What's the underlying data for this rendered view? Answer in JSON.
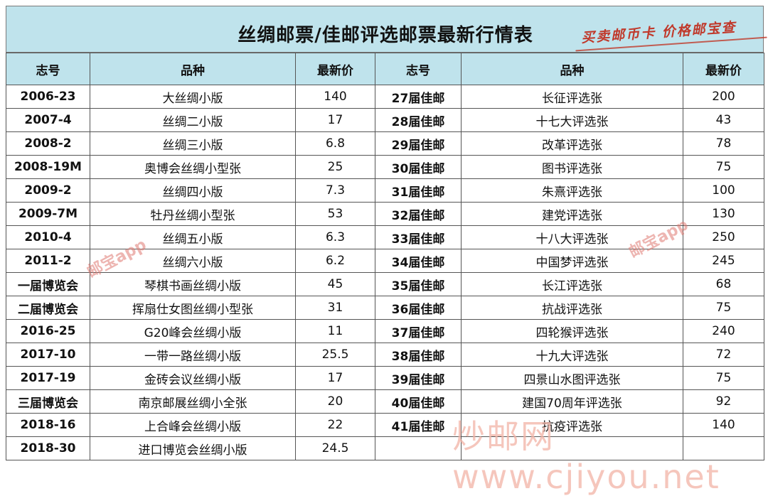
{
  "title": "丝绸邮票/佳邮评选邮票最新行情表",
  "slogan": "买卖邮币卡 价格邮宝查",
  "headers": {
    "left": [
      "志号",
      "品种",
      "最新价"
    ],
    "right": [
      "志号",
      "品种",
      "最新价"
    ]
  },
  "rows_left": [
    {
      "code": "2006-23",
      "name": "大丝绸小版",
      "price": "140"
    },
    {
      "code": "2007-4",
      "name": "丝绸二小版",
      "price": "17"
    },
    {
      "code": "2008-2",
      "name": "丝绸三小版",
      "price": "6.8"
    },
    {
      "code": "2008-19M",
      "name": "奥博会丝绸小型张",
      "price": "25"
    },
    {
      "code": "2009-2",
      "name": "丝绸四小版",
      "price": "7.3"
    },
    {
      "code": "2009-7M",
      "name": "牡丹丝绸小型张",
      "price": "53"
    },
    {
      "code": "2010-4",
      "name": "丝绸五小版",
      "price": "6.3"
    },
    {
      "code": "2011-2",
      "name": "丝绸六小版",
      "price": "6.2"
    },
    {
      "code": "一届博览会",
      "name": "琴棋书画丝绸小版",
      "price": "45"
    },
    {
      "code": "二届博览会",
      "name": "挥扇仕女图丝绸小型张",
      "price": "31"
    },
    {
      "code": "2016-25",
      "name": "G20峰会丝绸小版",
      "price": "11"
    },
    {
      "code": "2017-10",
      "name": "一带一路丝绸小版",
      "price": "25.5"
    },
    {
      "code": "2017-19",
      "name": "金砖会议丝绸小版",
      "price": "17"
    },
    {
      "code": "三届博览会",
      "name": "南京邮展丝绸小全张",
      "price": "20"
    },
    {
      "code": "2018-16",
      "name": "上合峰会丝绸小版",
      "price": "22"
    },
    {
      "code": "2018-30",
      "name": "进口博览会丝绸小版",
      "price": "24.5"
    }
  ],
  "rows_right": [
    {
      "code": "27届佳邮",
      "name": "长征评选张",
      "price": "200"
    },
    {
      "code": "28届佳邮",
      "name": "十七大评选张",
      "price": "43"
    },
    {
      "code": "29届佳邮",
      "name": "改革评选张",
      "price": "78"
    },
    {
      "code": "30届佳邮",
      "name": "图书评选张",
      "price": "75"
    },
    {
      "code": "31届佳邮",
      "name": "朱熹评选张",
      "price": "100"
    },
    {
      "code": "32届佳邮",
      "name": "建党评选张",
      "price": "130"
    },
    {
      "code": "33届佳邮",
      "name": "十八大评选张",
      "price": "250"
    },
    {
      "code": "34届佳邮",
      "name": "中国梦评选张",
      "price": "245"
    },
    {
      "code": "35届佳邮",
      "name": "长江评选张",
      "price": "68"
    },
    {
      "code": "36届佳邮",
      "name": "抗战评选张",
      "price": "75"
    },
    {
      "code": "37届佳邮",
      "name": "四轮猴评选张",
      "price": "240"
    },
    {
      "code": "38届佳邮",
      "name": "十九大评选张",
      "price": "72"
    },
    {
      "code": "39届佳邮",
      "name": "四景山水图评选张",
      "price": "75"
    },
    {
      "code": "40届佳邮",
      "name": "建国70周年评选张",
      "price": "92"
    },
    {
      "code": "41届佳邮",
      "name": "抗疫评选张",
      "price": "140"
    }
  ],
  "watermarks": {
    "app_left": "邮宝app",
    "app_right": "邮宝app",
    "site": "炒邮网 www.cjiyou.net"
  },
  "colors": {
    "header_bg": "#bfe3ec",
    "slogan": "#c0392b",
    "watermark": "#e07a72"
  }
}
